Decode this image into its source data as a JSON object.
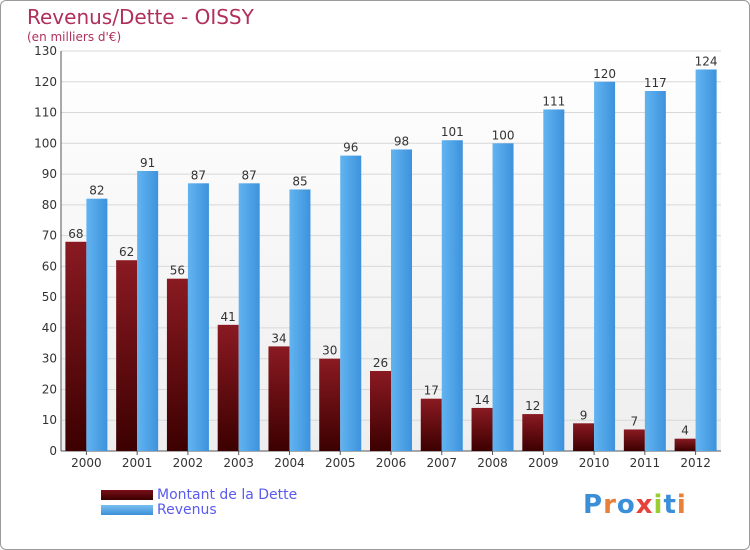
{
  "title": "Revenus/Dette - OISSY",
  "subtitle": "(en milliers d'€)",
  "logo": {
    "text": "Proxiti",
    "letter_colors": [
      "#3a8fd8",
      "#e8803a",
      "#3a8fd8",
      "#e8403a",
      "#9acd32",
      "#3a8fd8",
      "#e8803a"
    ]
  },
  "chart_data": {
    "type": "bar",
    "title": "Revenus/Dette - OISSY",
    "subtitle": "(en milliers d'€)",
    "categories": [
      "2000",
      "2001",
      "2002",
      "2003",
      "2004",
      "2005",
      "2006",
      "2007",
      "2008",
      "2009",
      "2010",
      "2011",
      "2012"
    ],
    "series": [
      {
        "name": "Montant de la Dette",
        "color": "#6b0a12",
        "values": [
          68,
          62,
          56,
          41,
          34,
          30,
          26,
          17,
          14,
          12,
          9,
          7,
          4
        ]
      },
      {
        "name": "Revenus",
        "color": "#4aa3e8",
        "values": [
          82,
          91,
          87,
          87,
          85,
          96,
          98,
          101,
          100,
          111,
          120,
          117,
          124
        ]
      }
    ],
    "ylim": [
      0,
      130
    ],
    "yticks": [
      0,
      10,
      20,
      30,
      40,
      50,
      60,
      70,
      80,
      90,
      100,
      110,
      120,
      130
    ],
    "grid": true,
    "legend": "bottom-left"
  }
}
